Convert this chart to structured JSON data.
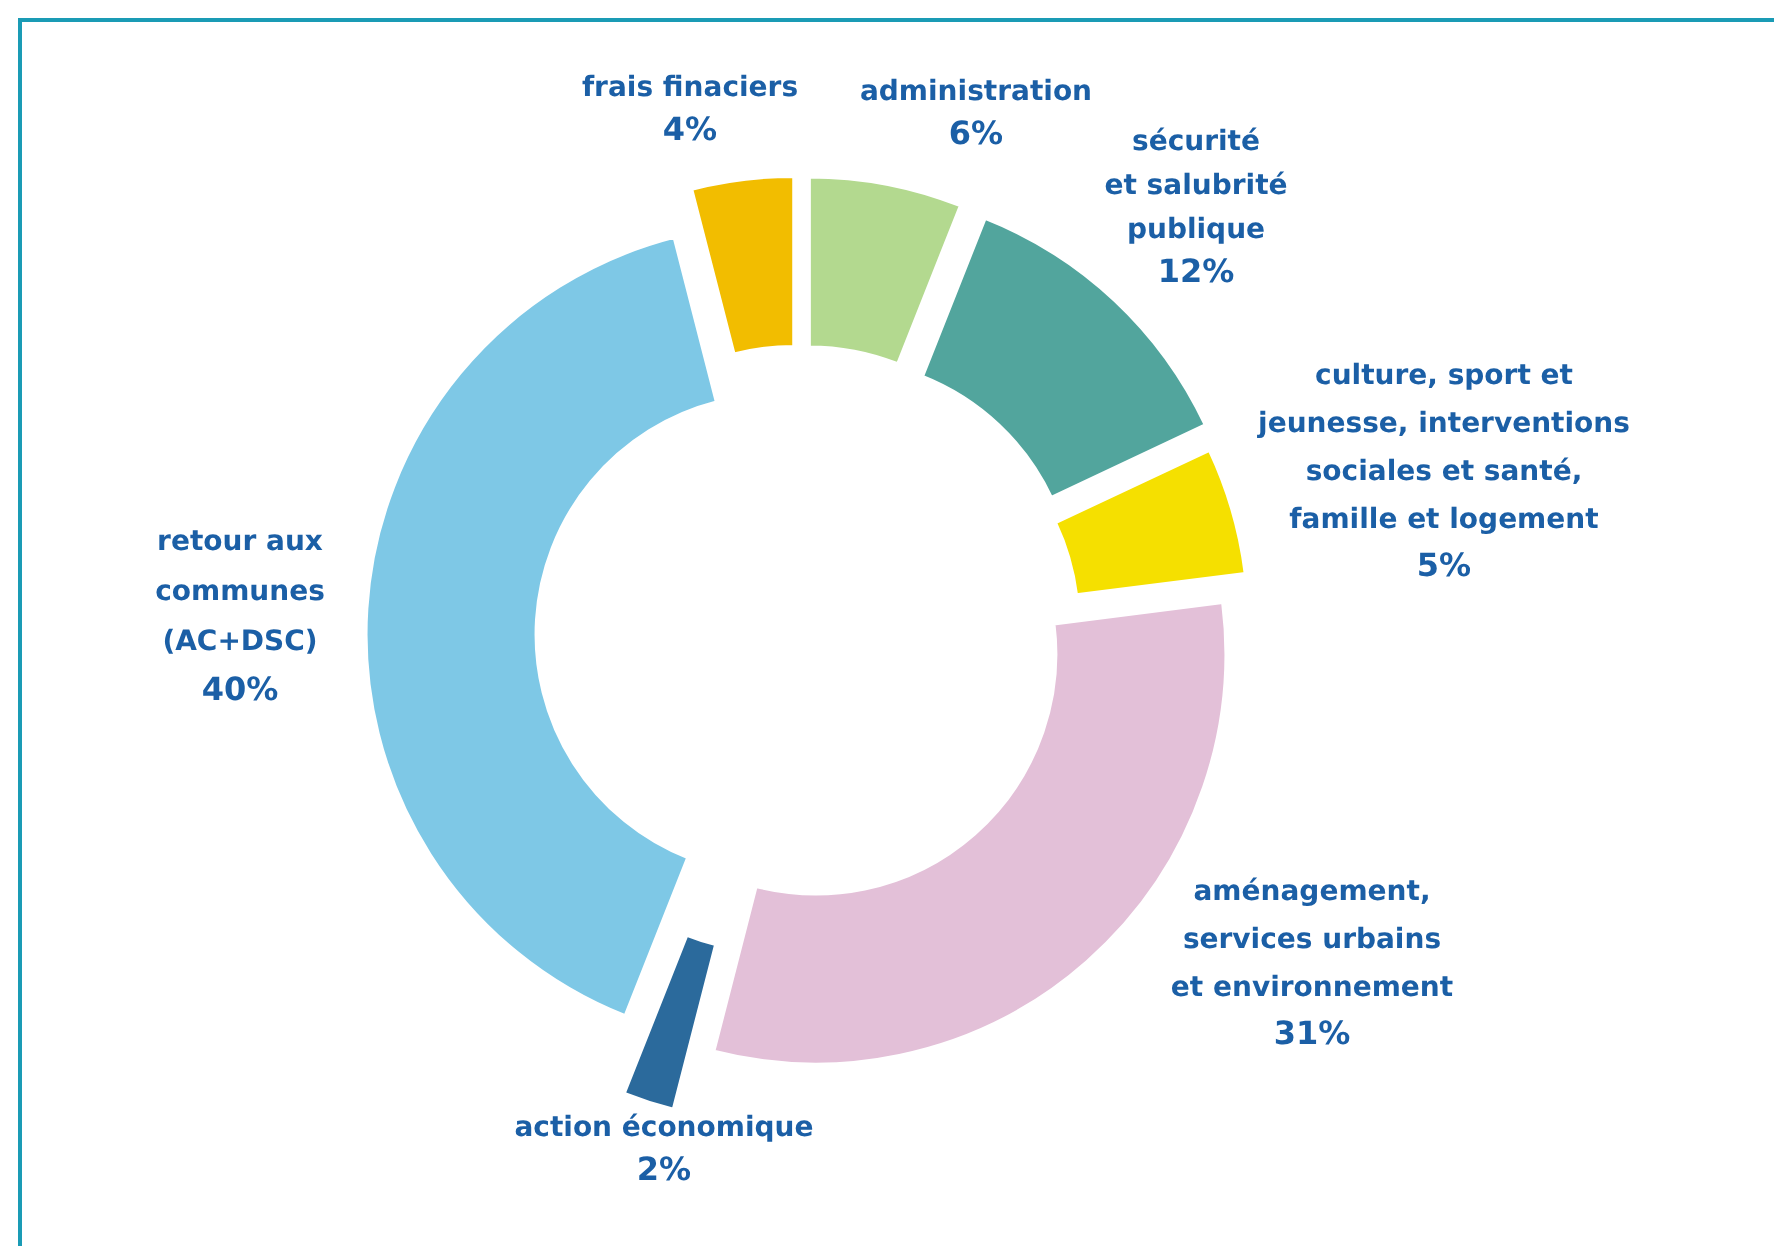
{
  "chart_data": {
    "type": "donut",
    "categories": [
      "administration",
      "sécurité\net salubrité\npublique",
      "culture, sport et\njeunesse, interventions\nsociales et santé,\nfamille et logement",
      "aménagement,\nservices urbains\net environnement",
      "action économique",
      "retour aux\ncommunes\n(AC+DSC)",
      "frais finaciers"
    ],
    "values": [
      6,
      12,
      5,
      31,
      2,
      40,
      4
    ],
    "colors": [
      "#b3d98f",
      "#52a59d",
      "#f5e000",
      "#e3c0d8",
      "#2b6a9c",
      "#7ec8e6",
      "#f2bd00"
    ],
    "value_labels": [
      "6%",
      "12%",
      "5%",
      "31%",
      "2%",
      "40%",
      "4%"
    ]
  }
}
